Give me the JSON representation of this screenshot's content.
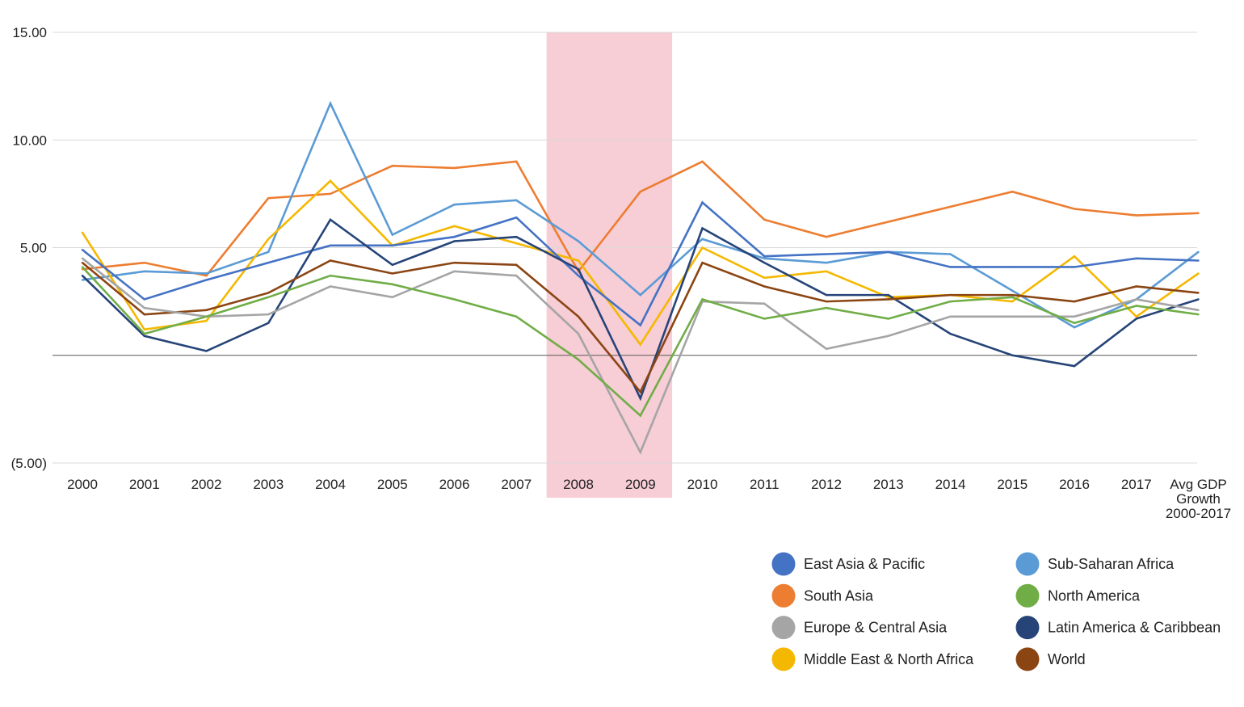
{
  "chart_data": {
    "type": "line",
    "title": "",
    "xlabel": "",
    "ylabel": "",
    "ylim": [
      -5,
      15
    ],
    "y_ticks": [
      {
        "value": 15,
        "label": "15.00"
      },
      {
        "value": 10,
        "label": "10.00"
      },
      {
        "value": 5,
        "label": "5.00"
      },
      {
        "value": -5,
        "label": "(5.00)"
      }
    ],
    "categories": [
      "2000",
      "2001",
      "2002",
      "2003",
      "2004",
      "2005",
      "2006",
      "2007",
      "2008",
      "2009",
      "2010",
      "2011",
      "2012",
      "2013",
      "2014",
      "2015",
      "2016",
      "2017",
      "Avg GDP Growth 2000-2017"
    ],
    "category_labels": [
      [
        "2000"
      ],
      [
        "2001"
      ],
      [
        "2002"
      ],
      [
        "2003"
      ],
      [
        "2004"
      ],
      [
        "2005"
      ],
      [
        "2006"
      ],
      [
        "2007"
      ],
      [
        "2008"
      ],
      [
        "2009"
      ],
      [
        "2010"
      ],
      [
        "2011"
      ],
      [
        "2012"
      ],
      [
        "2013"
      ],
      [
        "2014"
      ],
      [
        "2015"
      ],
      [
        "2016"
      ],
      [
        "2017"
      ],
      [
        "Avg GDP",
        "Growth",
        "2000-2017"
      ]
    ],
    "highlight": {
      "from": "2008",
      "to": "2009",
      "color": "#f7cdd6"
    },
    "legend_placement": "bottom-right",
    "series": [
      {
        "name": "South Asia",
        "color": "#ed7d31",
        "values": [
          4.0,
          4.3,
          3.7,
          7.3,
          7.5,
          8.8,
          8.7,
          9.0,
          3.9,
          7.6,
          9.0,
          6.3,
          5.5,
          6.2,
          6.9,
          7.6,
          6.8,
          6.5,
          6.6
        ]
      },
      {
        "name": "Sub-Saharan Africa",
        "color": "#5b9bd5",
        "values": [
          3.5,
          3.9,
          3.8,
          4.8,
          11.7,
          5.6,
          7.0,
          7.2,
          5.3,
          2.8,
          5.4,
          4.5,
          4.3,
          4.8,
          4.7,
          3.0,
          1.3,
          2.6,
          4.8
        ]
      },
      {
        "name": "Middle East & North Africa",
        "color": "#f5b800",
        "values": [
          5.7,
          1.2,
          1.6,
          5.4,
          8.1,
          5.1,
          6.0,
          5.2,
          4.4,
          0.5,
          5.0,
          3.6,
          3.9,
          2.7,
          2.8,
          2.5,
          4.6,
          1.8,
          3.8
        ]
      },
      {
        "name": "East Asia & Pacific",
        "color": "#4472c4",
        "values": [
          4.9,
          2.6,
          3.5,
          4.3,
          5.1,
          5.1,
          5.5,
          6.4,
          3.7,
          1.4,
          7.1,
          4.6,
          4.7,
          4.8,
          4.1,
          4.1,
          4.1,
          4.5,
          4.4
        ]
      },
      {
        "name": "Latin America & Caribbean",
        "color": "#264478",
        "values": [
          3.7,
          0.9,
          0.2,
          1.5,
          6.3,
          4.2,
          5.3,
          5.5,
          4.0,
          -2.0,
          5.9,
          4.3,
          2.8,
          2.8,
          1.0,
          0.0,
          -0.5,
          1.7,
          2.6
        ]
      },
      {
        "name": "World",
        "color": "#8b4513",
        "values": [
          4.3,
          1.9,
          2.1,
          2.9,
          4.4,
          3.8,
          4.3,
          4.2,
          1.8,
          -1.7,
          4.3,
          3.2,
          2.5,
          2.6,
          2.8,
          2.8,
          2.5,
          3.2,
          2.9
        ]
      },
      {
        "name": "Europe & Central Asia",
        "color": "#a5a5a5",
        "values": [
          4.5,
          2.2,
          1.8,
          1.9,
          3.2,
          2.7,
          3.9,
          3.7,
          1.0,
          -4.5,
          2.5,
          2.4,
          0.3,
          0.9,
          1.8,
          1.8,
          1.8,
          2.6,
          2.1
        ]
      },
      {
        "name": "North America",
        "color": "#70ad47",
        "values": [
          4.1,
          1.0,
          1.8,
          2.7,
          3.7,
          3.3,
          2.6,
          1.8,
          -0.2,
          -2.8,
          2.6,
          1.7,
          2.2,
          1.7,
          2.5,
          2.7,
          1.5,
          2.3,
          1.9
        ]
      }
    ],
    "legend_order": [
      [
        "East Asia & Pacific",
        "Sub-Saharan Africa"
      ],
      [
        "South Asia",
        "North America"
      ],
      [
        "Europe & Central Asia",
        "Latin America & Caribbean"
      ],
      [
        "Middle East & North Africa",
        "World"
      ]
    ]
  }
}
